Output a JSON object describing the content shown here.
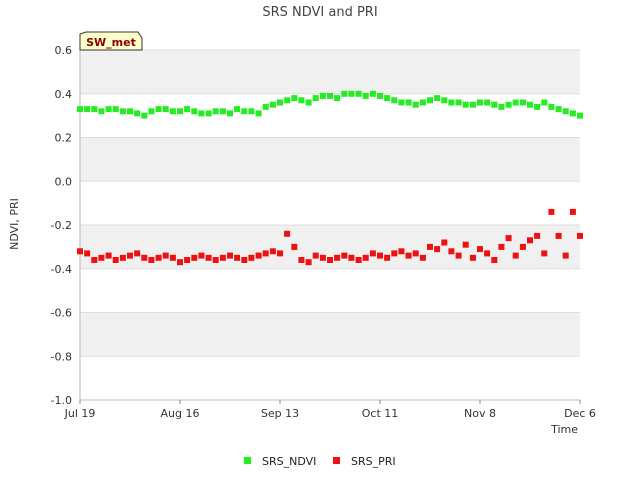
{
  "chart_data": {
    "type": "scatter",
    "title": "SRS NDVI and PRI",
    "xlabel": "Time",
    "ylabel": "NDVI, PRI",
    "site_badge": "SW_met",
    "ylim": [
      -1.0,
      0.6
    ],
    "yticks": [
      "0.6",
      "0.4",
      "0.2",
      "0.0",
      "-0.2",
      "-0.4",
      "-0.6",
      "-0.8",
      "-1.0"
    ],
    "xlim_days": [
      0,
      140
    ],
    "xticks": [
      {
        "label": "Jul 19",
        "day": 0
      },
      {
        "label": "Aug 16",
        "day": 28
      },
      {
        "label": "Sep 13",
        "day": 56
      },
      {
        "label": "Oct 11",
        "day": 84
      },
      {
        "label": "Nov 8",
        "day": 112
      },
      {
        "label": "Dec 6",
        "day": 140
      }
    ],
    "grid": "horizontal bands",
    "legend_position": "bottom",
    "series": [
      {
        "name": "SRS_NDVI",
        "color": "#22ee22",
        "x": [
          0,
          2,
          4,
          6,
          8,
          10,
          12,
          14,
          16,
          18,
          20,
          22,
          24,
          26,
          28,
          30,
          32,
          34,
          36,
          38,
          40,
          42,
          44,
          46,
          48,
          50,
          52,
          54,
          56,
          58,
          60,
          62,
          64,
          66,
          68,
          70,
          72,
          74,
          76,
          78,
          80,
          82,
          84,
          86,
          88,
          90,
          92,
          94,
          96,
          98,
          100,
          102,
          104,
          106,
          108,
          110,
          112,
          114,
          116,
          118,
          120,
          122,
          124,
          126,
          128,
          130,
          132,
          134,
          136,
          138,
          140
        ],
        "y": [
          0.33,
          0.33,
          0.33,
          0.32,
          0.33,
          0.33,
          0.32,
          0.32,
          0.31,
          0.3,
          0.32,
          0.33,
          0.33,
          0.32,
          0.32,
          0.33,
          0.32,
          0.31,
          0.31,
          0.32,
          0.32,
          0.31,
          0.33,
          0.32,
          0.32,
          0.31,
          0.34,
          0.35,
          0.36,
          0.37,
          0.38,
          0.37,
          0.36,
          0.38,
          0.39,
          0.39,
          0.38,
          0.4,
          0.4,
          0.4,
          0.39,
          0.4,
          0.39,
          0.38,
          0.37,
          0.36,
          0.36,
          0.35,
          0.36,
          0.37,
          0.38,
          0.37,
          0.36,
          0.36,
          0.35,
          0.35,
          0.36,
          0.36,
          0.35,
          0.34,
          0.35,
          0.36,
          0.36,
          0.35,
          0.34,
          0.36,
          0.34,
          0.33,
          0.32,
          0.31,
          0.3
        ]
      },
      {
        "name": "SRS_PRI",
        "color": "#ee1111",
        "x": [
          0,
          2,
          4,
          6,
          8,
          10,
          12,
          14,
          16,
          18,
          20,
          22,
          24,
          26,
          28,
          30,
          32,
          34,
          36,
          38,
          40,
          42,
          44,
          46,
          48,
          50,
          52,
          54,
          56,
          58,
          60,
          62,
          64,
          66,
          68,
          70,
          72,
          74,
          76,
          78,
          80,
          82,
          84,
          86,
          88,
          90,
          92,
          94,
          96,
          98,
          100,
          102,
          104,
          106,
          108,
          110,
          112,
          114,
          116,
          118,
          120,
          122,
          124,
          126,
          128,
          130,
          132,
          134,
          136,
          138,
          140
        ],
        "y": [
          -0.32,
          -0.33,
          -0.36,
          -0.35,
          -0.34,
          -0.36,
          -0.35,
          -0.34,
          -0.33,
          -0.35,
          -0.36,
          -0.35,
          -0.34,
          -0.35,
          -0.37,
          -0.36,
          -0.35,
          -0.34,
          -0.35,
          -0.36,
          -0.35,
          -0.34,
          -0.35,
          -0.36,
          -0.35,
          -0.34,
          -0.33,
          -0.32,
          -0.33,
          -0.24,
          -0.3,
          -0.36,
          -0.37,
          -0.34,
          -0.35,
          -0.36,
          -0.35,
          -0.34,
          -0.35,
          -0.36,
          -0.35,
          -0.33,
          -0.34,
          -0.35,
          -0.33,
          -0.32,
          -0.34,
          -0.33,
          -0.35,
          -0.3,
          -0.31,
          -0.28,
          -0.32,
          -0.34,
          -0.29,
          -0.35,
          -0.31,
          -0.33,
          -0.36,
          -0.3,
          -0.26,
          -0.34,
          -0.3,
          -0.27,
          -0.25,
          -0.33,
          -0.14,
          -0.25,
          -0.34,
          -0.14,
          -0.25
        ]
      }
    ]
  }
}
